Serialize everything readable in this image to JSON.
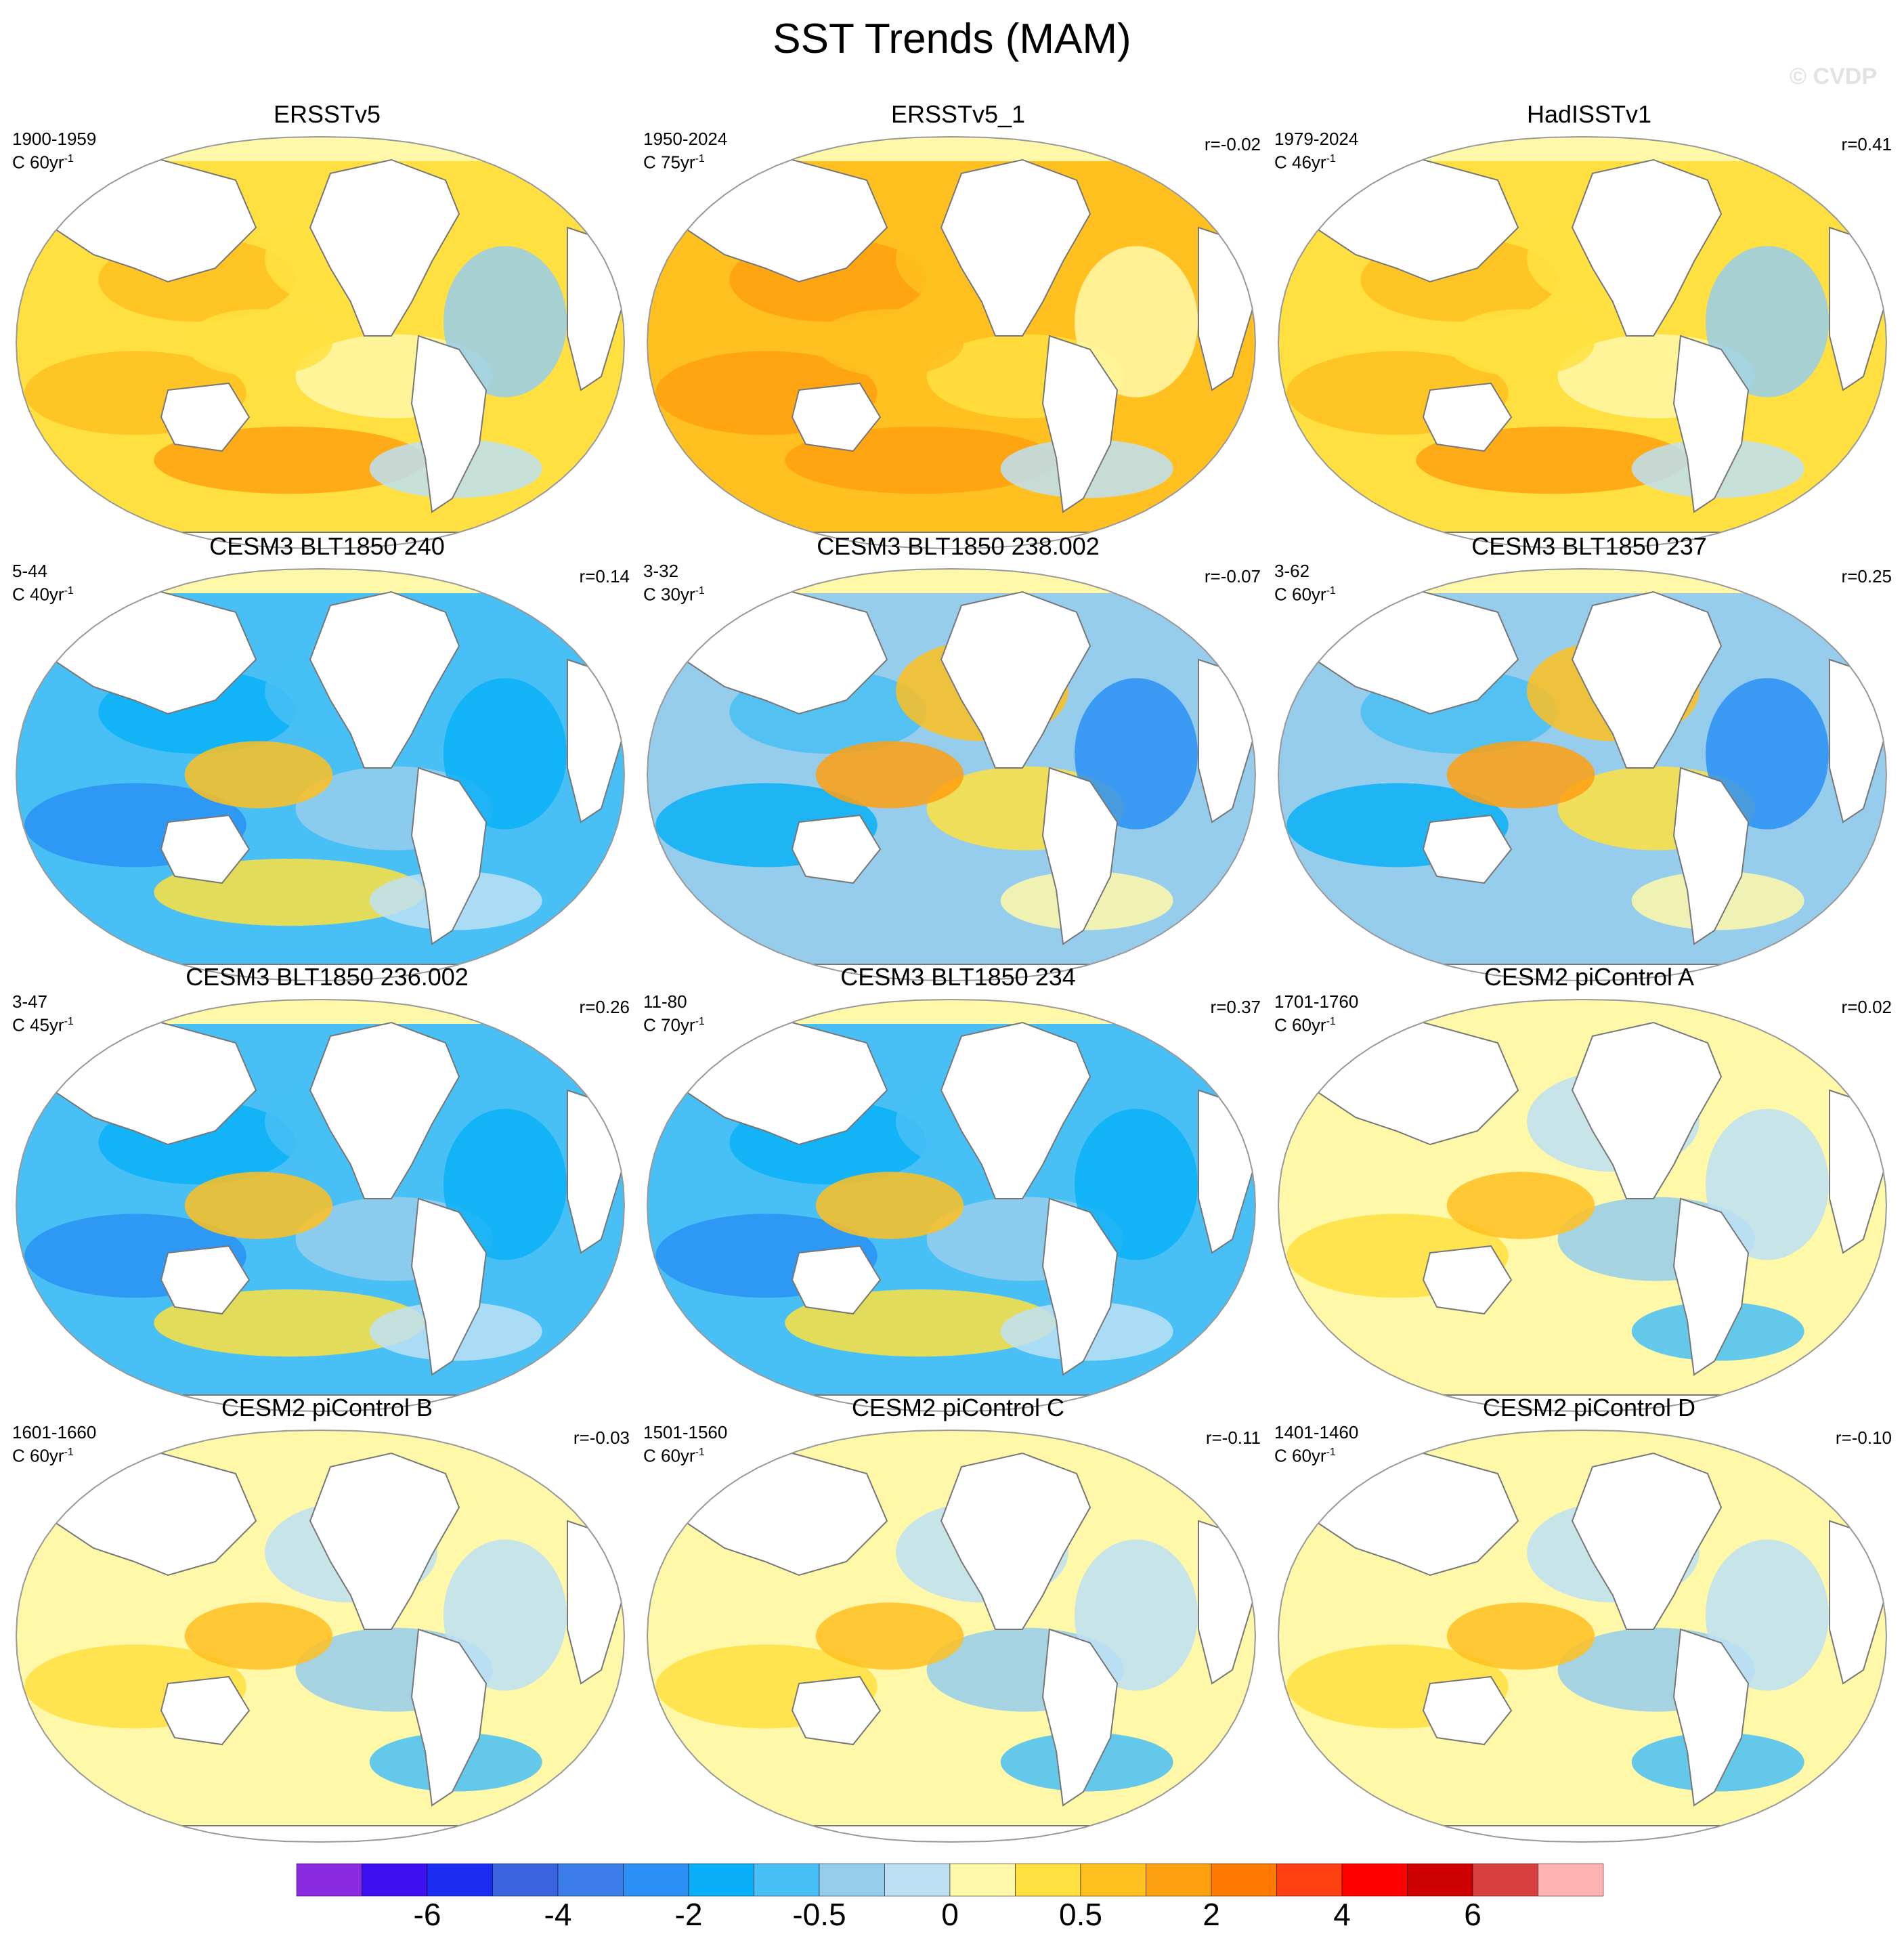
{
  "title": "SST Trends (MAM)",
  "watermark": "© CVDP",
  "panels": [
    {
      "title": "ERSSTv5",
      "period": "1900-1959",
      "units": "C 60yr",
      "corr": "",
      "theme": "warm"
    },
    {
      "title": "ERSSTv5_1",
      "period": "1950-2024",
      "units": "C 75yr",
      "corr": "r=-0.02",
      "theme": "hot"
    },
    {
      "title": "HadISSTv1",
      "period": "1979-2024",
      "units": "C 46yr",
      "corr": "r=0.41",
      "theme": "warm"
    },
    {
      "title": "CESM3 BLT1850 240",
      "period": "5-44",
      "units": "C 40yr",
      "corr": "r=0.14",
      "theme": "cold"
    },
    {
      "title": "CESM3 BLT1850 238.002",
      "period": "3-32",
      "units": "C 30yr",
      "corr": "r=-0.07",
      "theme": "mixed"
    },
    {
      "title": "CESM3 BLT1850 237",
      "period": "3-62",
      "units": "C 60yr",
      "corr": "r=0.25",
      "theme": "mixed"
    },
    {
      "title": "CESM3 BLT1850 236.002",
      "period": "3-47",
      "units": "C 45yr",
      "corr": "r=0.26",
      "theme": "cold"
    },
    {
      "title": "CESM3 BLT1850 234",
      "period": "11-80",
      "units": "C 70yr",
      "corr": "r=0.37",
      "theme": "cold"
    },
    {
      "title": "CESM2 piControl A",
      "period": "1701-1760",
      "units": "C 60yr",
      "corr": "r=0.02",
      "theme": "weak"
    },
    {
      "title": "CESM2 piControl B",
      "period": "1601-1660",
      "units": "C 60yr",
      "corr": "r=-0.03",
      "theme": "weak"
    },
    {
      "title": "CESM2 piControl C",
      "period": "1501-1560",
      "units": "C 60yr",
      "corr": "r=-0.11",
      "theme": "weak"
    },
    {
      "title": "CESM2 piControl D",
      "period": "1401-1460",
      "units": "C 60yr",
      "corr": "r=-0.10",
      "theme": "weak"
    }
  ],
  "units_superscript": "-1",
  "colorbar": {
    "colors": [
      "#8a2be2",
      "#3a10f0",
      "#1a2cf0",
      "#3a63e0",
      "#3a7ce8",
      "#2a90f5",
      "#0ab0f7",
      "#48c0f5",
      "#96ccec",
      "#bde0f5",
      "#fff8a8",
      "#ffe040",
      "#ffc020",
      "#ffa010",
      "#ff7a00",
      "#ff4010",
      "#ff0000",
      "#cc0000",
      "#d84040",
      "#ffb3b3"
    ],
    "labels": [
      "-6",
      "-4",
      "-2",
      "-0.5",
      "0",
      "0.5",
      "2",
      "4",
      "6"
    ]
  },
  "palette": {
    "land": "#ffffff",
    "coast": "#777777",
    "border": "#999999"
  }
}
